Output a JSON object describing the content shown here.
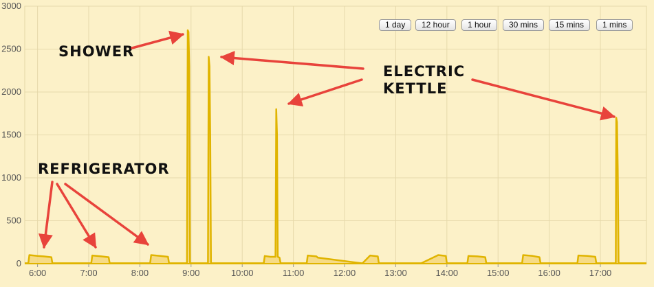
{
  "range_buttons": [
    "1 day",
    "12 hour",
    "1 hour",
    "30 mins",
    "15 mins",
    "1 mins"
  ],
  "chart_data": {
    "type": "area",
    "title": "",
    "xlabel": "",
    "ylabel": "",
    "ylim": [
      0,
      3000
    ],
    "y_ticks": [
      "0",
      "500",
      "1000",
      "1500",
      "2000",
      "2500",
      "3000"
    ],
    "x_ticks": [
      "6:00",
      "7:00",
      "8:00",
      "9:00",
      "10:00",
      "11:00",
      "12:00",
      "13:00",
      "14:00",
      "15:00",
      "16:00",
      "17:00"
    ],
    "xlim_hours": [
      5.75,
      17.9
    ],
    "grid": true,
    "line_color": "#e0b400",
    "fill_color": "#f5d77a",
    "series": [
      {
        "x": [
          5.75,
          5.82,
          5.84,
          6.0,
          6.12,
          6.27,
          6.29,
          7.05,
          7.07,
          7.25,
          7.39,
          7.41,
          8.2,
          8.22,
          8.4,
          8.55,
          8.57,
          8.92,
          8.935,
          8.95,
          8.965,
          8.98,
          9.33,
          9.345,
          9.36,
          9.375,
          9.39,
          10.42,
          10.44,
          10.55,
          10.65,
          10.665,
          10.68,
          10.695,
          10.73,
          10.75,
          11.26,
          11.28,
          11.45,
          11.48,
          12.33,
          12.35,
          12.5,
          12.65,
          12.67,
          13.5,
          13.83,
          13.98,
          14.0,
          14.4,
          14.42,
          14.6,
          14.75,
          14.77,
          15.47,
          15.49,
          15.68,
          15.81,
          15.83,
          16.55,
          16.57,
          16.75,
          16.9,
          16.92,
          17.3,
          17.31,
          17.325,
          17.34,
          17.355,
          17.9
        ],
        "y": [
          5,
          5,
          100,
          90,
          85,
          75,
          5,
          5,
          95,
          85,
          75,
          5,
          5,
          100,
          90,
          80,
          5,
          5,
          2720,
          2700,
          2300,
          5,
          5,
          2410,
          2300,
          1500,
          5,
          5,
          90,
          80,
          80,
          1800,
          1500,
          80,
          70,
          5,
          5,
          95,
          85,
          70,
          5,
          5,
          95,
          85,
          5,
          5,
          100,
          90,
          5,
          5,
          90,
          85,
          75,
          5,
          5,
          100,
          90,
          75,
          5,
          5,
          95,
          90,
          80,
          5,
          5,
          1700,
          1650,
          1100,
          5,
          5
        ]
      }
    ],
    "annotations": [
      {
        "label": "SHOWER"
      },
      {
        "label": "ELECTRIC"
      },
      {
        "label": "KETTLE"
      },
      {
        "label": "REFRIGERATOR"
      }
    ]
  }
}
